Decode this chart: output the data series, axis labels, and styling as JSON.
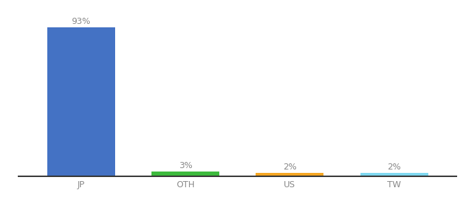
{
  "categories": [
    "JP",
    "OTH",
    "US",
    "TW"
  ],
  "values": [
    93,
    3,
    2,
    2
  ],
  "bar_colors": [
    "#4472c4",
    "#3dba3d",
    "#f5a623",
    "#7fd8f0"
  ],
  "labels": [
    "93%",
    "3%",
    "2%",
    "2%"
  ],
  "background_color": "#ffffff",
  "ylim": [
    0,
    100
  ],
  "bar_width": 0.65,
  "label_fontsize": 9,
  "tick_fontsize": 9,
  "label_color": "#888888",
  "tick_color": "#888888",
  "spine_color": "#333333"
}
